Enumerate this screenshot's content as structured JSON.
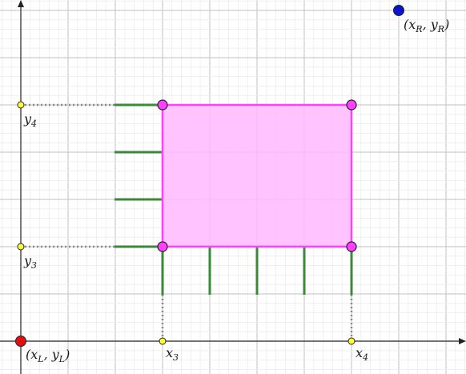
{
  "diagram": {
    "points": {
      "origin": {
        "label": "(x",
        "sub": "L",
        "mid": ", y",
        "sub2": "L",
        "end": ")",
        "color": "#e01010"
      },
      "top_right": {
        "label": "(x",
        "sub": "R",
        "mid": ", y",
        "sub2": "R",
        "end": ")",
        "color": "#0a14d0"
      },
      "x3": {
        "base": "x",
        "sub": "3",
        "color": "#ffff3a"
      },
      "x4": {
        "base": "x",
        "sub": "4",
        "color": "#ffff3a"
      },
      "y3": {
        "base": "y",
        "sub": "3",
        "color": "#ffff3a"
      },
      "y4": {
        "base": "y",
        "sub": "4",
        "color": "#ffff3a"
      }
    },
    "rect_color": "#ff40ff",
    "rect_fill": "#ffb8ff",
    "tick_color": "#3a8a3a",
    "dotted_color": "#888888"
  }
}
